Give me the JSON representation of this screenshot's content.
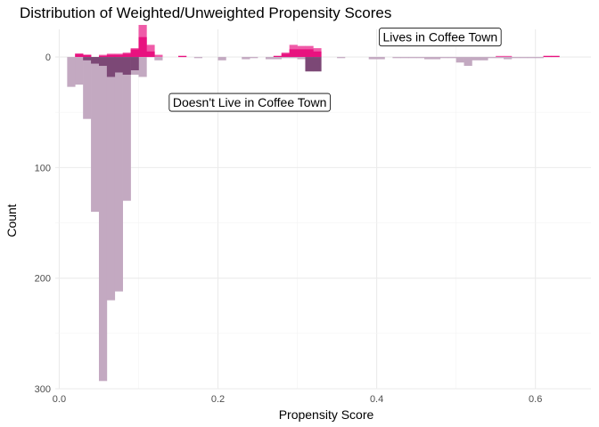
{
  "chart_data": {
    "type": "bar",
    "title": "Distribution of Weighted/Unweighted Propensity Scores",
    "xlabel": "Propensity Score",
    "ylabel": "Count",
    "xlim": [
      -0.005,
      0.67
    ],
    "ylim": [
      -25,
      300
    ],
    "x_ticks": [
      0.0,
      0.2,
      0.4,
      0.6
    ],
    "x_tick_labels": [
      "0.0",
      "0.2",
      "0.4",
      "0.6"
    ],
    "y_ticks": [
      0,
      100,
      200,
      300
    ],
    "y_tick_labels": [
      "0",
      "100",
      "200",
      "300"
    ],
    "grid": true,
    "bin_width": 0.01,
    "colors": {
      "weighted_up": "#ef5ba8",
      "unweighted_up": "#e8127f",
      "weighted_down": "#c3a9c1",
      "overlap_down": "#7c4876"
    },
    "annotations": [
      {
        "text": "Lives in Coffee Town",
        "x": 0.48,
        "y": -18
      },
      {
        "text": "Doesn't Live in Coffee Town",
        "x": 0.24,
        "y": 41
      }
    ],
    "series": [
      {
        "key": "weighted_up",
        "x": [
          0.025,
          0.035,
          0.055,
          0.065,
          0.075,
          0.085,
          0.095,
          0.105,
          0.115,
          0.125,
          0.155,
          0.275,
          0.285,
          0.295,
          0.305,
          0.315,
          0.325,
          0.555,
          0.565,
          0.615,
          0.625
        ],
        "values": [
          3,
          2,
          2,
          3,
          3,
          4,
          8,
          29,
          11,
          2,
          1,
          1,
          4,
          11,
          10,
          10,
          8,
          1,
          1,
          1,
          1
        ]
      },
      {
        "key": "unweighted_up",
        "x": [
          0.025,
          0.035,
          0.055,
          0.065,
          0.075,
          0.085,
          0.095,
          0.105,
          0.115,
          0.155,
          0.275,
          0.285,
          0.295,
          0.305,
          0.315,
          0.325,
          0.615,
          0.625
        ],
        "values": [
          3,
          2,
          1,
          2,
          2,
          3,
          7,
          18,
          5,
          1,
          1,
          3,
          7,
          7,
          7,
          5,
          1,
          1
        ]
      },
      {
        "key": "weighted_down",
        "x": [
          0.015,
          0.025,
          0.035,
          0.045,
          0.055,
          0.065,
          0.075,
          0.085,
          0.095,
          0.105,
          0.125,
          0.175,
          0.205,
          0.235,
          0.245,
          0.265,
          0.275,
          0.285,
          0.295,
          0.305,
          0.315,
          0.325,
          0.355,
          0.395,
          0.405,
          0.425,
          0.435,
          0.445,
          0.455,
          0.465,
          0.475,
          0.485,
          0.495,
          0.505,
          0.515,
          0.525,
          0.535,
          0.545,
          0.555,
          0.565,
          0.575,
          0.585,
          0.595,
          0.605
        ],
        "values": [
          27,
          25,
          56,
          140,
          293,
          220,
          212,
          130,
          16,
          18,
          3,
          1,
          3,
          2,
          1,
          2,
          2,
          1,
          1,
          2,
          13,
          13,
          1,
          2,
          2,
          1,
          1,
          1,
          1,
          2,
          2,
          1,
          1,
          5,
          8,
          3,
          3,
          1,
          1,
          2,
          1,
          1,
          1,
          1
        ]
      },
      {
        "key": "overlap_down",
        "x": [
          0.035,
          0.045,
          0.055,
          0.065,
          0.075,
          0.085,
          0.095,
          0.315,
          0.325
        ],
        "values": [
          3,
          6,
          8,
          18,
          14,
          16,
          12,
          13,
          13
        ]
      }
    ]
  }
}
